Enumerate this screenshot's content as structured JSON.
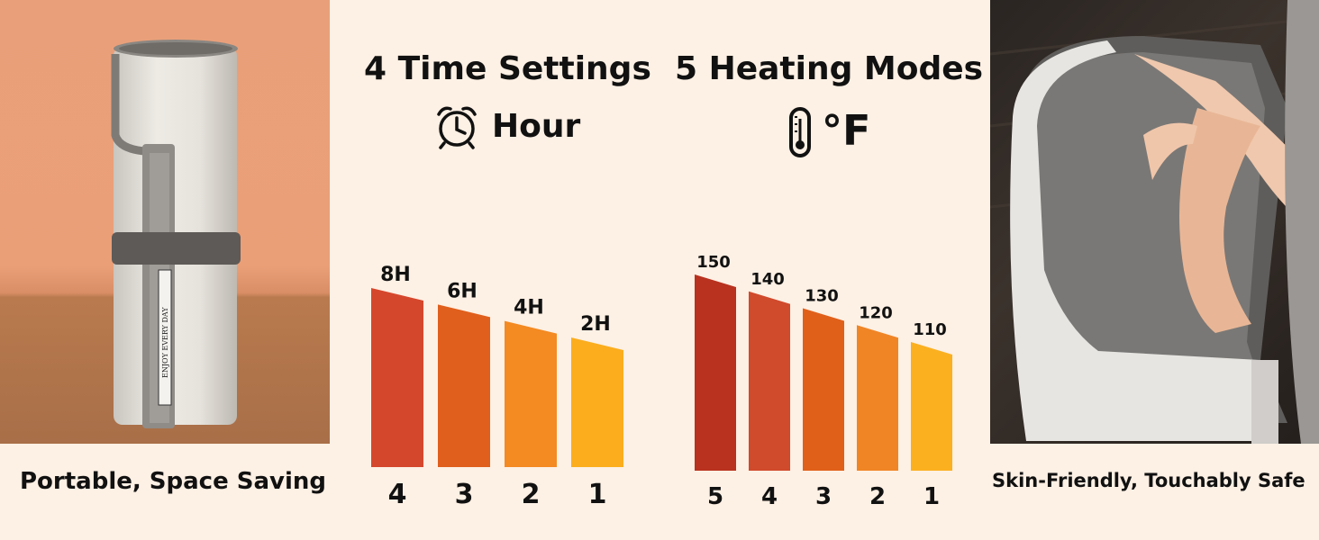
{
  "headings": {
    "time_title": "4 Time Settings",
    "time_unit": "Hour",
    "heat_title": "5 Heating Modes",
    "heat_unit": "°F"
  },
  "captions": {
    "left": "Portable, Space Saving",
    "right": "Skin-Friendly, Touchably Safe"
  },
  "product_label": "ENJOY EVERY DAY",
  "icons": {
    "time": "alarm-clock-icon",
    "heat": "thermometer-icon"
  },
  "colors": {
    "background": "#fdf0e4",
    "bar_dark": "#c8402a",
    "bar_mid": "#e8601a",
    "bar_light": "#fbb224"
  },
  "chart_data": [
    {
      "type": "bar",
      "title": "4 Time Settings",
      "categories": [
        "4",
        "3",
        "2",
        "1"
      ],
      "values": [
        8,
        6,
        4,
        2
      ],
      "labels": [
        "8H",
        "6H",
        "4H",
        "2H"
      ],
      "colors": [
        "#d5472c",
        "#e05f1c",
        "#f48a22",
        "#fbad1d"
      ],
      "ylim": [
        0,
        8
      ]
    },
    {
      "type": "bar",
      "title": "5 Heating Modes",
      "categories": [
        "5",
        "4",
        "3",
        "2",
        "1"
      ],
      "values": [
        150,
        140,
        130,
        120,
        110
      ],
      "labels": [
        "150",
        "140",
        "130",
        "120",
        "110"
      ],
      "colors": [
        "#b8321f",
        "#d04a2c",
        "#e0601a",
        "#f08526",
        "#fbb020"
      ],
      "ylim": [
        0,
        150
      ]
    }
  ]
}
